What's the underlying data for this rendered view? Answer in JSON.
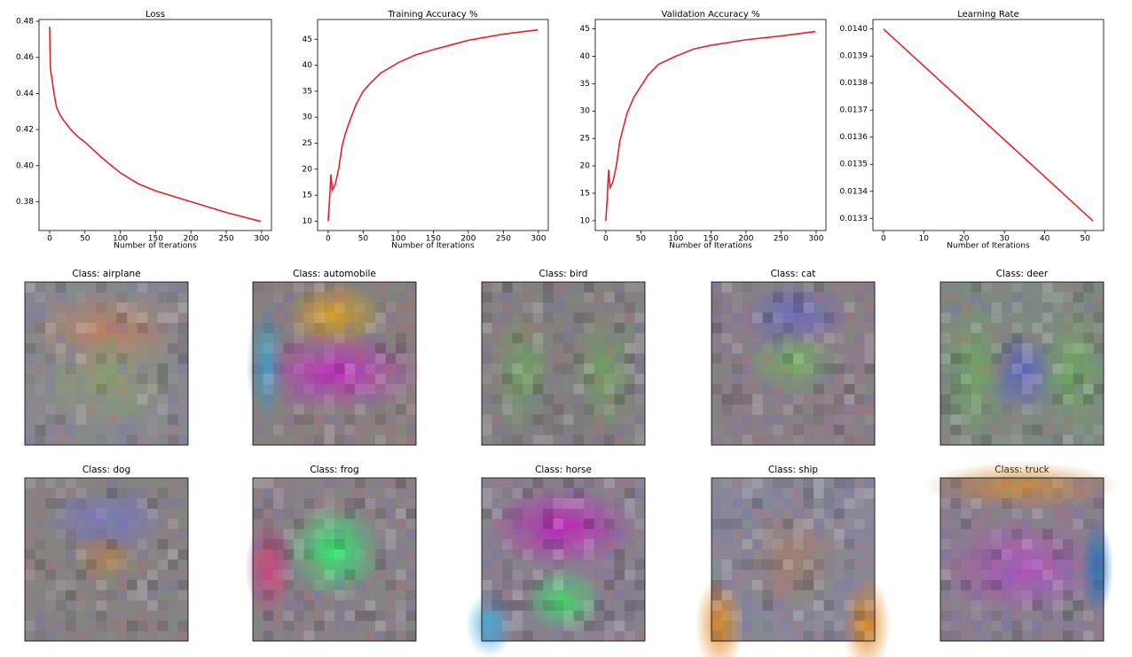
{
  "chart_data": [
    {
      "type": "line",
      "title": "Loss",
      "x_label": "Number of Iterations",
      "x": [
        0,
        1,
        2,
        3,
        5,
        8,
        10,
        15,
        20,
        30,
        40,
        50,
        75,
        100,
        125,
        150,
        200,
        250,
        299
      ],
      "values": [
        0.477,
        0.455,
        0.451,
        0.449,
        0.443,
        0.436,
        0.432,
        0.428,
        0.425,
        0.42,
        0.416,
        0.413,
        0.404,
        0.396,
        0.39,
        0.386,
        0.38,
        0.374,
        0.369
      ],
      "color": "#e8202a",
      "xlim": [
        -15,
        314
      ],
      "ylim": [
        0.364,
        0.481
      ],
      "xticks": [
        0,
        50,
        100,
        150,
        200,
        250,
        300
      ],
      "yticks": [
        0.38,
        {
          "value": 0.4,
          "label": "0.40"
        },
        0.42,
        0.44,
        0.46,
        0.48
      ]
    },
    {
      "type": "line",
      "title": "Training Accuracy %",
      "x_label": "Number of Iterations",
      "x": [
        0,
        2,
        4,
        6,
        10,
        15,
        20,
        25,
        30,
        40,
        50,
        60,
        75,
        100,
        125,
        150,
        200,
        250,
        299
      ],
      "values": [
        10,
        14,
        19,
        16,
        17,
        20,
        24.5,
        27,
        29,
        32.5,
        35,
        36.5,
        38.5,
        40.5,
        42,
        43,
        44.8,
        46,
        46.8
      ],
      "color": "#e8202a",
      "xlim": [
        -15,
        314
      ],
      "ylim": [
        8.2,
        48.8
      ],
      "xticks": [
        0,
        50,
        100,
        150,
        200,
        250,
        300
      ],
      "yticks": [
        10,
        15,
        20,
        25,
        30,
        35,
        40,
        45
      ]
    },
    {
      "type": "line",
      "title": "Validation Accuracy %",
      "x_label": "Number of Iterations",
      "x": [
        0,
        2,
        4,
        6,
        10,
        15,
        20,
        25,
        30,
        40,
        50,
        60,
        75,
        100,
        125,
        150,
        200,
        250,
        299
      ],
      "values": [
        10,
        14,
        19.3,
        16,
        17,
        20,
        24.5,
        27,
        29.5,
        32.5,
        34.5,
        36.5,
        38.5,
        40,
        41.3,
        42,
        43,
        43.7,
        44.5
      ],
      "color": "#e8202a",
      "xlim": [
        -15,
        314
      ],
      "ylim": [
        8.2,
        46.7
      ],
      "xticks": [
        0,
        50,
        100,
        150,
        200,
        250,
        300
      ],
      "yticks": [
        10,
        15,
        20,
        25,
        30,
        35,
        40,
        45
      ]
    },
    {
      "type": "line",
      "title": "Learning Rate",
      "x_label": "Number of Iterations",
      "x": [
        0,
        52
      ],
      "values": [
        0.014,
        0.01329
      ],
      "color": "#e8202a",
      "xlim": [
        -2.6,
        54.6
      ],
      "ylim": [
        0.013255,
        0.014035
      ],
      "xticks": [
        0,
        10,
        20,
        30,
        40,
        50
      ],
      "yticks": [
        0.0133,
        0.0134,
        0.0135,
        0.0136,
        0.0137,
        0.0138,
        0.0139,
        {
          "value": 0.014,
          "label": "0.0140"
        }
      ]
    }
  ],
  "images": [
    {
      "title": "Class: airplane"
    },
    {
      "title": "Class: automobile"
    },
    {
      "title": "Class: bird"
    },
    {
      "title": "Class: cat"
    },
    {
      "title": "Class: deer"
    },
    {
      "title": "Class: dog"
    },
    {
      "title": "Class: frog"
    },
    {
      "title": "Class: horse"
    },
    {
      "title": "Class: ship"
    },
    {
      "title": "Class: truck"
    }
  ]
}
